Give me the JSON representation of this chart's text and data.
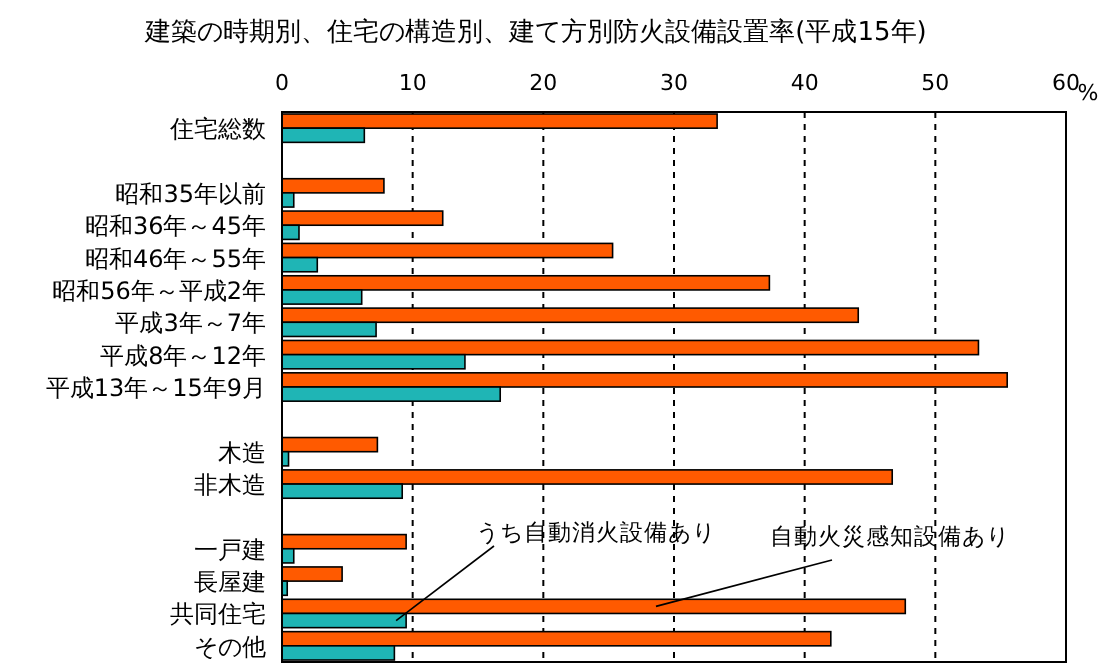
{
  "chart_data": {
    "type": "bar",
    "orientation": "horizontal",
    "title": "建築の時期別、住宅の構造別、建て方別防火設備設置率(平成15年)",
    "xlabel": "%",
    "categories": [
      "住宅総数",
      null,
      "昭和35年以前",
      "昭和36年～45年",
      "昭和46年～55年",
      "昭和56年～平成2年",
      "平成3年～7年",
      "平成8年～12年",
      "平成13年～15年9月",
      null,
      "木造",
      "非木造",
      null,
      "一戸建",
      "長屋建",
      "共同住宅",
      "その他"
    ],
    "series": [
      {
        "name": "自動火災感知設備あり",
        "color": "#ff5a00",
        "values": [
          33.3,
          null,
          7.8,
          12.3,
          25.3,
          37.3,
          44.1,
          53.3,
          55.5,
          null,
          7.3,
          46.7,
          null,
          9.5,
          4.6,
          47.7,
          42.0
        ]
      },
      {
        "name": "うち自動消火設備あり",
        "color": "#1fb5b5",
        "values": [
          6.3,
          null,
          0.9,
          1.3,
          2.7,
          6.1,
          7.2,
          14.0,
          16.7,
          null,
          0.5,
          9.2,
          null,
          0.9,
          0.4,
          9.5,
          8.6
        ]
      }
    ],
    "xlim": [
      0,
      60
    ],
    "xticks": [
      0,
      10,
      20,
      30,
      40,
      50,
      60
    ],
    "grid": "x"
  }
}
